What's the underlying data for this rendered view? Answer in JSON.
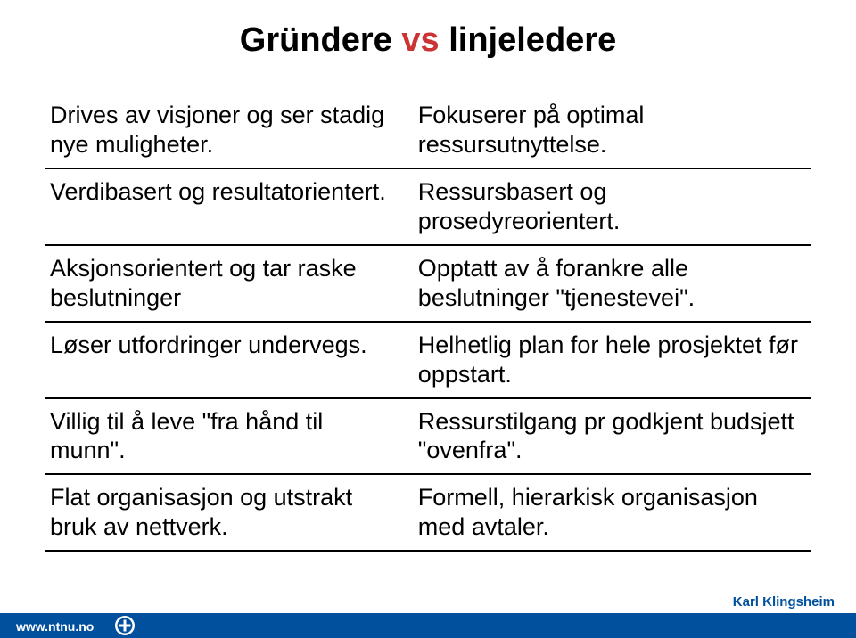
{
  "title": {
    "parts": [
      {
        "text": "Gründere ",
        "color": "#000000"
      },
      {
        "text": "vs",
        "color": "#cc3333"
      },
      {
        "text": "  linjeledere",
        "color": "#000000"
      }
    ],
    "fontsize": 38
  },
  "table": {
    "cell_fontsize": 27,
    "cell_color": "#000000",
    "border_color": "#000000",
    "rows": [
      {
        "left": "Drives av visjoner og ser stadig nye muligheter.",
        "right": "Fokuserer på optimal ressursutnyttelse."
      },
      {
        "left": "Verdibasert og resultatorientert.",
        "right": "Ressursbasert og prosedyreorientert."
      },
      {
        "left": "Aksjonsorientert og tar raske beslutninger",
        "right": "Opptatt av å forankre alle beslutninger \"tjenestevei\"."
      },
      {
        "left": "Løser utfordringer undervegs.",
        "right": "Helhetlig plan for hele prosjektet før oppstart."
      },
      {
        "left": "Villig til å leve \"fra hånd til munn\".",
        "right": "Ressurstilgang pr godkjent budsjett \"ovenfra\"."
      },
      {
        "left": "Flat organisasjon og utstrakt bruk av nettverk.",
        "right": "Formell, hierarkisk organisasjon med avtaler."
      }
    ]
  },
  "footer": {
    "url": "www.ntnu.no",
    "author": "Karl Klingsheim",
    "bar_color": "#00509e",
    "text_color": "#ffffff",
    "logo_color": "#ffffff"
  }
}
